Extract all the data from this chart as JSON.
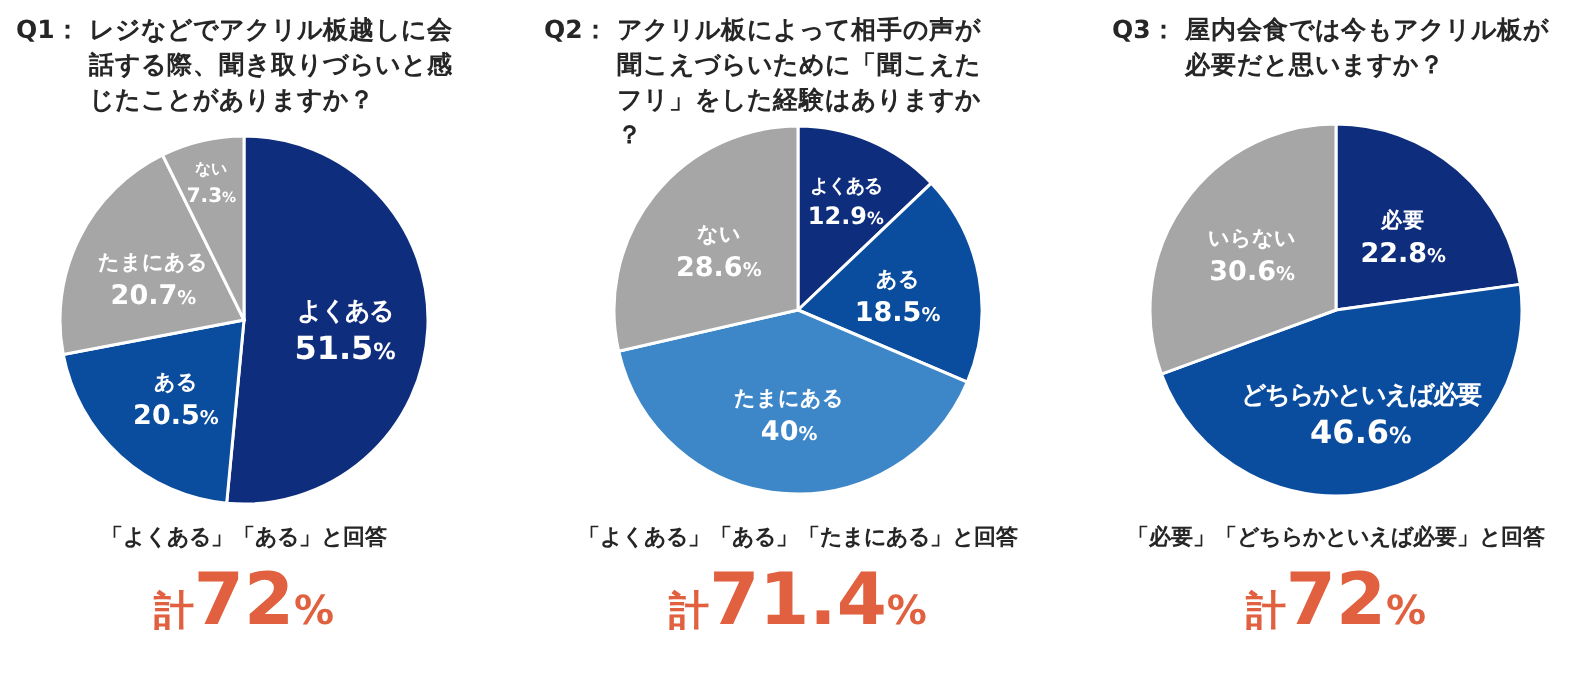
{
  "chart_data": [
    {
      "type": "pie",
      "title": "Q1：レジなどでアクリル板越しに会話する際、聞き取りづらいと感じたことがありますか？",
      "categories": [
        "よくある",
        "ある",
        "たまにある",
        "ない"
      ],
      "values": [
        51.5,
        20.5,
        20.7,
        7.3
      ],
      "value_labels": [
        "51.5%",
        "20.5%",
        "20.7%",
        "7.3%"
      ],
      "colors": [
        "#0e2d7c",
        "#0a4c9e",
        "#a6a6a6",
        "#a6a6a6"
      ],
      "annotations": [
        "「よくある」「ある」と回答",
        "計72%"
      ]
    },
    {
      "type": "pie",
      "title": "Q2：アクリル板によって相手の声が聞こえづらいために「聞こえたフリ」をした経験はありますか？",
      "categories": [
        "よくある",
        "ある",
        "たまにある",
        "ない"
      ],
      "values": [
        12.9,
        18.5,
        40,
        28.6
      ],
      "value_labels": [
        "12.9%",
        "18.5%",
        "40%",
        "28.6%"
      ],
      "colors": [
        "#0e2d7c",
        "#0a4c9e",
        "#3d87c8",
        "#a6a6a6"
      ],
      "annotations": [
        "「よくある」「ある」「たまにある」と回答",
        "計71.4%"
      ]
    },
    {
      "type": "pie",
      "title": "Q3：屋内会食では今もアクリル板が必要だと思いますか？",
      "categories": [
        "必要",
        "どちらかといえば必要",
        "いらない"
      ],
      "values": [
        22.8,
        46.6,
        30.6
      ],
      "value_labels": [
        "22.8%",
        "46.6%",
        "30.6%"
      ],
      "colors": [
        "#0e2d7c",
        "#0a4c9e",
        "#a6a6a6"
      ],
      "annotations": [
        "「必要」「どちらかといえば必要」と回答",
        "計72%"
      ]
    }
  ]
}
